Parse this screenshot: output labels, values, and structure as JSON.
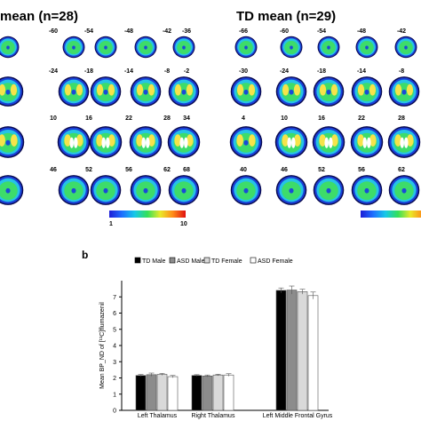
{
  "panel_a": {
    "left_title": "mean (n=28)",
    "right_title": "TD mean (n=29)",
    "left_rows": [
      [
        "-60",
        "-54",
        "-48",
        "-42",
        "-36"
      ],
      [
        "-24",
        "-18",
        "-14",
        "-8",
        "-2"
      ],
      [
        "10",
        "16",
        "22",
        "28",
        "34"
      ],
      [
        "46",
        "52",
        "56",
        "62",
        "68"
      ]
    ],
    "right_rows": [
      [
        "-66",
        "-60",
        "-54",
        "-48",
        "-42"
      ],
      [
        "-30",
        "-24",
        "-18",
        "-14",
        "-8"
      ],
      [
        "4",
        "10",
        "16",
        "22",
        "28"
      ],
      [
        "40",
        "46",
        "52",
        "56",
        "62"
      ]
    ],
    "colorbar_min": "1",
    "colorbar_max": "10"
  },
  "panel_b": {
    "letter": "b",
    "chart_data": {
      "type": "bar",
      "categories": [
        "Left Thalamus",
        "Right Thalamus",
        "Left Middle Frontal Gyrus"
      ],
      "series": [
        {
          "name": "TD Male",
          "values": [
            2.15,
            2.15,
            7.4
          ],
          "errors": [
            0.06,
            0.05,
            0.15
          ],
          "color": "#000000"
        },
        {
          "name": "ASD Male",
          "values": [
            2.2,
            2.12,
            7.42
          ],
          "errors": [
            0.1,
            0.06,
            0.25
          ],
          "color": "#8c8c8c"
        },
        {
          "name": "TD Female",
          "values": [
            2.22,
            2.18,
            7.32
          ],
          "errors": [
            0.06,
            0.05,
            0.15
          ],
          "color": "#d9d9d9"
        },
        {
          "name": "ASD Female",
          "values": [
            2.08,
            2.18,
            7.08
          ],
          "errors": [
            0.07,
            0.08,
            0.22
          ],
          "color": "#ffffff"
        }
      ],
      "ylabel": "Mean BP_ND of [¹¹C]flumazenil",
      "yticks": [
        "0",
        "1",
        "2",
        "3",
        "4",
        "5",
        "6",
        "7"
      ],
      "ylim": [
        0,
        8
      ],
      "legend": "top"
    }
  }
}
